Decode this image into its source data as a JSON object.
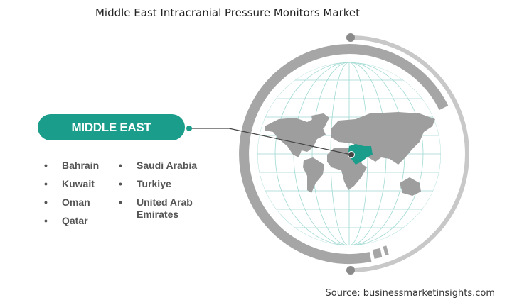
{
  "title": "Middle East Intracranial Pressure Monitors Market",
  "region_label": "MIDDLE EAST",
  "countries_col1": [
    "Bahrain",
    "Kuwait",
    "Oman",
    "Qatar"
  ],
  "countries_col2": [
    "Saudi Arabia",
    "Turkiye",
    "United Arab Emirates"
  ],
  "bullet": "•",
  "source": "Source: businessmarketinsights.com",
  "colors": {
    "accent": "#1a9d8a",
    "ring": "#a6a6a6",
    "ring_light": "#c8c8c8",
    "land": "#9e9e9e",
    "grid": "#9fd9d2"
  },
  "icon": "globe-map"
}
